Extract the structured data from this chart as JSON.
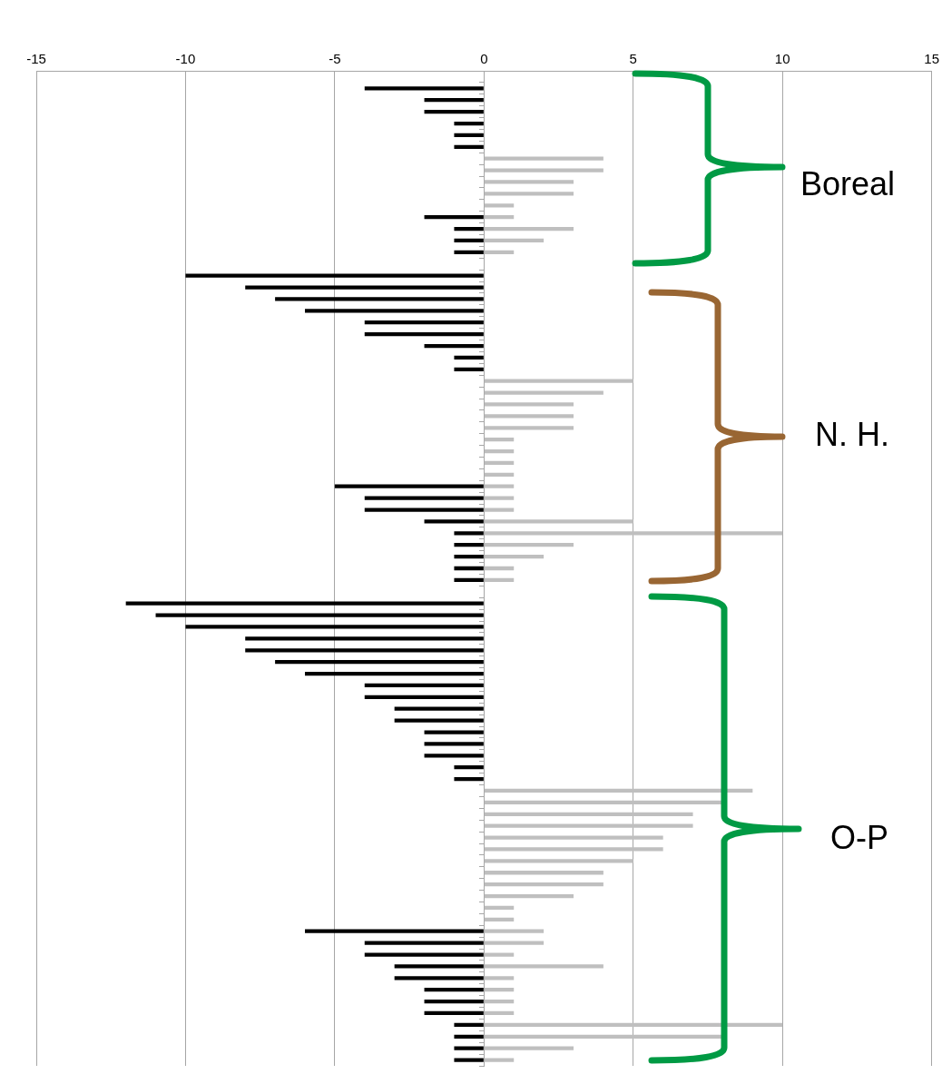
{
  "chart_data": {
    "type": "bar",
    "orientation": "horizontal",
    "categories": [
      null,
      null,
      null,
      null,
      null,
      null,
      null,
      null,
      null,
      null,
      null,
      null,
      null,
      null,
      null,
      null,
      null,
      null,
      null,
      null,
      null,
      null,
      null,
      null,
      null,
      null,
      null,
      null,
      null,
      null,
      null,
      null,
      null,
      null,
      null,
      null,
      null,
      null,
      null,
      null,
      null,
      null,
      null,
      null,
      null,
      null,
      null,
      null,
      null,
      null,
      null,
      null,
      null,
      null,
      null,
      null,
      null,
      null,
      null,
      null,
      null,
      null,
      null,
      null,
      null,
      null,
      null,
      null,
      null,
      null,
      null,
      null,
      null,
      null,
      null,
      null,
      null,
      null,
      null,
      null,
      null,
      null,
      null,
      null,
      null
    ],
    "series": [
      {
        "color": "#000000",
        "values": [
          null,
          -4,
          -2,
          -2,
          -1,
          -1,
          -1,
          null,
          null,
          null,
          null,
          null,
          -2,
          -1,
          -1,
          -1,
          null,
          -10,
          -8,
          -7,
          -6,
          -4,
          -4,
          -2,
          -1,
          -1,
          null,
          null,
          null,
          null,
          null,
          null,
          null,
          null,
          null,
          -5,
          -4,
          -4,
          -2,
          -1,
          -1,
          -1,
          -1,
          -1,
          null,
          -12,
          -11,
          -10,
          -8,
          -8,
          -7,
          -6,
          -4,
          -4,
          -3,
          -3,
          -2,
          -2,
          -2,
          -1,
          -1,
          null,
          null,
          null,
          null,
          null,
          null,
          null,
          null,
          null,
          null,
          null,
          null,
          -6,
          -4,
          -4,
          -3,
          -3,
          -2,
          -2,
          -2,
          -1,
          -1,
          -1,
          -1
        ]
      },
      {
        "color": "#bfbfbf",
        "values": [
          null,
          null,
          null,
          null,
          null,
          null,
          null,
          4,
          4,
          3,
          3,
          1,
          1,
          3,
          2,
          1,
          null,
          null,
          null,
          null,
          null,
          null,
          null,
          null,
          null,
          null,
          5,
          4,
          3,
          3,
          3,
          1,
          1,
          1,
          1,
          1,
          1,
          1,
          5,
          10,
          3,
          2,
          1,
          1,
          null,
          null,
          null,
          null,
          null,
          null,
          null,
          null,
          null,
          null,
          null,
          null,
          null,
          null,
          null,
          null,
          null,
          9,
          8,
          7,
          7,
          6,
          6,
          5,
          4,
          4,
          3,
          1,
          1,
          2,
          2,
          1,
          4,
          1,
          1,
          1,
          1,
          10,
          8,
          3,
          1
        ]
      }
    ],
    "xlim": [
      -15,
      15
    ],
    "xticks": [
      -15,
      -10,
      -5,
      0,
      5,
      10,
      15
    ],
    "grid": "x",
    "legend": false,
    "tick_labels": "x",
    "annotations": [
      "Boreal",
      "N. H.",
      "O-P"
    ]
  }
}
